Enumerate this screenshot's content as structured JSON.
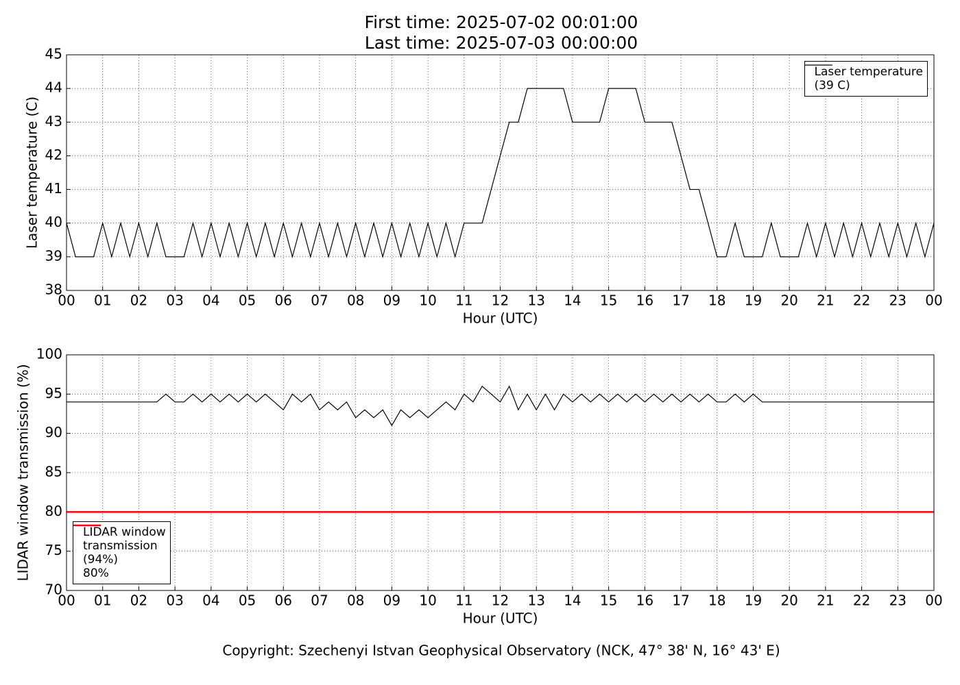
{
  "chart_data": [
    {
      "type": "line",
      "title": "First time: 2025-07-02 00:01:00",
      "subtitle": "Last time: 2025-07-03 00:00:00",
      "xlabel": "Hour (UTC)",
      "ylabel": "Laser temperature (C)",
      "grid": true,
      "legend": "upper right",
      "xlim": [
        0,
        24
      ],
      "ylim": [
        38,
        45
      ],
      "yticks": [
        38,
        39,
        40,
        41,
        42,
        43,
        44,
        45
      ],
      "xticks": [
        {
          "value": 0,
          "label": "00"
        },
        {
          "value": 1,
          "label": "01"
        },
        {
          "value": 2,
          "label": "02"
        },
        {
          "value": 3,
          "label": "03"
        },
        {
          "value": 4,
          "label": "04"
        },
        {
          "value": 5,
          "label": "05"
        },
        {
          "value": 6,
          "label": "06"
        },
        {
          "value": 7,
          "label": "07"
        },
        {
          "value": 8,
          "label": "08"
        },
        {
          "value": 9,
          "label": "09"
        },
        {
          "value": 10,
          "label": "10"
        },
        {
          "value": 11,
          "label": "11"
        },
        {
          "value": 12,
          "label": "12"
        },
        {
          "value": 13,
          "label": "13"
        },
        {
          "value": 14,
          "label": "14"
        },
        {
          "value": 15,
          "label": "15"
        },
        {
          "value": 16,
          "label": "16"
        },
        {
          "value": 17,
          "label": "17"
        },
        {
          "value": 18,
          "label": "18"
        },
        {
          "value": 19,
          "label": "19"
        },
        {
          "value": 20,
          "label": "20"
        },
        {
          "value": 21,
          "label": "21"
        },
        {
          "value": 22,
          "label": "22"
        },
        {
          "value": 23,
          "label": "23"
        },
        {
          "value": 24,
          "label": "00"
        }
      ],
      "x": [
        0,
        0.25,
        0.5,
        0.75,
        1,
        1.25,
        1.5,
        1.75,
        2,
        2.25,
        2.5,
        2.75,
        3,
        3.25,
        3.5,
        3.75,
        4,
        4.25,
        4.5,
        4.75,
        5,
        5.25,
        5.5,
        5.75,
        6,
        6.25,
        6.5,
        6.75,
        7,
        7.25,
        7.5,
        7.75,
        8,
        8.25,
        8.5,
        8.75,
        9,
        9.25,
        9.5,
        9.75,
        10,
        10.25,
        10.5,
        10.75,
        11,
        11.25,
        11.5,
        11.75,
        12,
        12.25,
        12.5,
        12.75,
        13,
        13.25,
        13.5,
        13.75,
        14,
        14.25,
        14.5,
        14.75,
        15,
        15.25,
        15.5,
        15.75,
        16,
        16.25,
        16.5,
        16.75,
        17,
        17.25,
        17.5,
        17.75,
        18,
        18.25,
        18.5,
        18.75,
        19,
        19.25,
        19.5,
        19.75,
        20,
        20.25,
        20.5,
        20.75,
        21,
        21.25,
        21.5,
        21.75,
        22,
        22.25,
        22.5,
        22.75,
        23,
        23.25,
        23.5,
        23.75,
        24
      ],
      "series": [
        {
          "name": "Laser temperature\n(39 C)",
          "color": "#000000",
          "values": [
            40,
            39,
            39,
            39,
            40,
            39,
            40,
            39,
            40,
            39,
            40,
            39,
            39,
            39,
            40,
            39,
            40,
            39,
            40,
            39,
            40,
            39,
            40,
            39,
            40,
            39,
            40,
            39,
            40,
            39,
            40,
            39,
            40,
            39,
            40,
            39,
            40,
            39,
            40,
            39,
            40,
            39,
            40,
            39,
            40,
            40,
            40,
            41,
            42,
            43,
            43,
            44,
            44,
            44,
            44,
            44,
            43,
            43,
            43,
            43,
            44,
            44,
            44,
            44,
            43,
            43,
            43,
            43,
            42,
            41,
            41,
            40,
            39,
            39,
            40,
            39,
            39,
            39,
            40,
            39,
            39,
            39,
            40,
            39,
            40,
            39,
            40,
            39,
            40,
            39,
            40,
            39,
            40,
            39,
            40,
            39,
            40
          ]
        }
      ]
    },
    {
      "type": "line",
      "xlabel": "Hour (UTC)",
      "ylabel": "LIDAR window transmission (%)",
      "grid": true,
      "legend": "lower left",
      "xlim": [
        0,
        24
      ],
      "ylim": [
        70,
        100
      ],
      "yticks": [
        70,
        75,
        80,
        85,
        90,
        95,
        100
      ],
      "xticks": [
        {
          "value": 0,
          "label": "00"
        },
        {
          "value": 1,
          "label": "01"
        },
        {
          "value": 2,
          "label": "02"
        },
        {
          "value": 3,
          "label": "03"
        },
        {
          "value": 4,
          "label": "04"
        },
        {
          "value": 5,
          "label": "05"
        },
        {
          "value": 6,
          "label": "06"
        },
        {
          "value": 7,
          "label": "07"
        },
        {
          "value": 8,
          "label": "08"
        },
        {
          "value": 9,
          "label": "09"
        },
        {
          "value": 10,
          "label": "10"
        },
        {
          "value": 11,
          "label": "11"
        },
        {
          "value": 12,
          "label": "12"
        },
        {
          "value": 13,
          "label": "13"
        },
        {
          "value": 14,
          "label": "14"
        },
        {
          "value": 15,
          "label": "15"
        },
        {
          "value": 16,
          "label": "16"
        },
        {
          "value": 17,
          "label": "17"
        },
        {
          "value": 18,
          "label": "18"
        },
        {
          "value": 19,
          "label": "19"
        },
        {
          "value": 20,
          "label": "20"
        },
        {
          "value": 21,
          "label": "21"
        },
        {
          "value": 22,
          "label": "22"
        },
        {
          "value": 23,
          "label": "23"
        },
        {
          "value": 24,
          "label": "00"
        }
      ],
      "x": [
        0,
        0.25,
        0.5,
        0.75,
        1,
        1.25,
        1.5,
        1.75,
        2,
        2.25,
        2.5,
        2.75,
        3,
        3.25,
        3.5,
        3.75,
        4,
        4.25,
        4.5,
        4.75,
        5,
        5.25,
        5.5,
        5.75,
        6,
        6.25,
        6.5,
        6.75,
        7,
        7.25,
        7.5,
        7.75,
        8,
        8.25,
        8.5,
        8.75,
        9,
        9.25,
        9.5,
        9.75,
        10,
        10.25,
        10.5,
        10.75,
        11,
        11.25,
        11.5,
        11.75,
        12,
        12.25,
        12.5,
        12.75,
        13,
        13.25,
        13.5,
        13.75,
        14,
        14.25,
        14.5,
        14.75,
        15,
        15.25,
        15.5,
        15.75,
        16,
        16.25,
        16.5,
        16.75,
        17,
        17.25,
        17.5,
        17.75,
        18,
        18.25,
        18.5,
        18.75,
        19,
        19.25,
        19.5,
        19.75,
        20,
        20.25,
        20.5,
        20.75,
        21,
        21.25,
        21.5,
        21.75,
        22,
        22.25,
        22.5,
        22.75,
        23,
        23.25,
        23.5,
        23.75,
        24
      ],
      "series": [
        {
          "name": "LIDAR window\ntransmission\n(94%)",
          "color": "#000000",
          "values": [
            94,
            94,
            94,
            94,
            94,
            94,
            94,
            94,
            94,
            94,
            94,
            95,
            94,
            94,
            95,
            94,
            95,
            94,
            95,
            94,
            95,
            94,
            95,
            94,
            93,
            95,
            94,
            95,
            93,
            94,
            93,
            94,
            92,
            93,
            92,
            93,
            91,
            93,
            92,
            93,
            92,
            93,
            94,
            93,
            95,
            94,
            96,
            95,
            94,
            96,
            93,
            95,
            93,
            95,
            93,
            95,
            94,
            95,
            94,
            95,
            94,
            95,
            94,
            95,
            94,
            95,
            94,
            95,
            94,
            95,
            94,
            95,
            94,
            94,
            95,
            94,
            95,
            94,
            94,
            94,
            94,
            94,
            94,
            94,
            94,
            94,
            94,
            94,
            94,
            94,
            94,
            94,
            94,
            94,
            94,
            94,
            94
          ]
        },
        {
          "name": "80%",
          "color": "#ff0000",
          "x": [
            0,
            24
          ],
          "values": [
            80,
            80
          ]
        }
      ]
    }
  ],
  "footer": {
    "copyright": "Copyright: Szechenyi Istvan Geophysical Observatory (NCK, 47° 38' N, 16° 43' E)"
  }
}
